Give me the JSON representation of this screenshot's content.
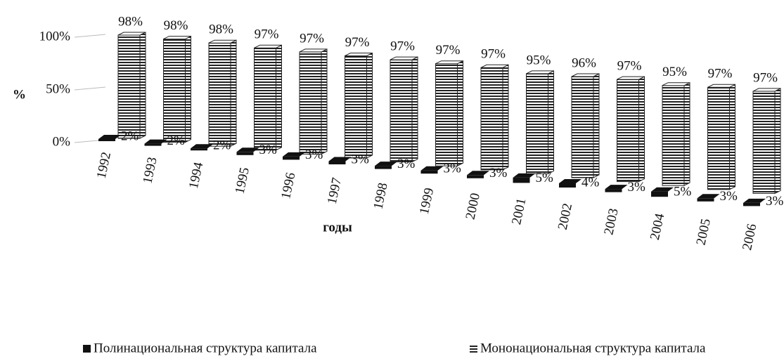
{
  "chart_data": {
    "type": "bar3d",
    "ylabel": "%",
    "xlabel": "годы",
    "categories": [
      "1992",
      "1993",
      "1994",
      "1995",
      "1996",
      "1997",
      "1998",
      "1999",
      "2000",
      "2001",
      "2002",
      "2003",
      "2004",
      "2005",
      "2006"
    ],
    "series": [
      {
        "name": "Полинациональная структура капитала",
        "color": "#111111",
        "values": [
          2,
          2,
          2,
          3,
          3,
          3,
          3,
          3,
          3,
          5,
          4,
          3,
          5,
          3,
          3
        ],
        "value_labels": [
          "2%",
          "2%",
          "2%",
          "3%",
          "3%",
          "3%",
          "3%",
          "3%",
          "3%",
          "5%",
          "4%",
          "3%",
          "5%",
          "3%",
          "3%"
        ]
      },
      {
        "name": "Мононациональная структура капитала",
        "color": "#222222",
        "values": [
          98,
          98,
          98,
          97,
          97,
          97,
          97,
          97,
          97,
          95,
          96,
          97,
          95,
          97,
          97
        ],
        "value_labels": [
          "98%",
          "98%",
          "98%",
          "97%",
          "97%",
          "97%",
          "97%",
          "97%",
          "97%",
          "95%",
          "96%",
          "97%",
          "95%",
          "97%",
          "97%"
        ]
      }
    ],
    "ylim": [
      0,
      100
    ],
    "yticks": [
      {
        "value": 0,
        "label": "0%"
      },
      {
        "value": 50,
        "label": "50%"
      },
      {
        "value": 100,
        "label": "100%"
      }
    ],
    "legend": "bottom"
  }
}
